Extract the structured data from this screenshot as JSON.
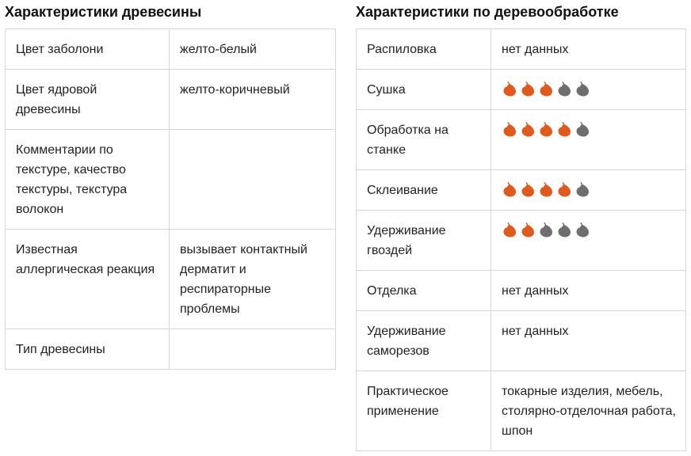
{
  "wood_characteristics": {
    "title": "Характеристики древесины",
    "rows": [
      {
        "label": "Цвет заболони",
        "value": "желто-белый"
      },
      {
        "label": "Цвет ядровой древесины",
        "value": "желто-коричневый"
      },
      {
        "label": "Комментарии по текстуре, качество текстуры, текстура волокон",
        "value": ""
      },
      {
        "label": "Известная аллергическая реакция",
        "value": "вызывает контактный дерматит и респираторные проблемы"
      },
      {
        "label": "Тип древесины",
        "value": ""
      }
    ]
  },
  "woodworking_characteristics": {
    "title": "Характеристики по деревообработке",
    "rating_colors": {
      "filled": "#e05a1e",
      "empty": "#6e6e6e"
    },
    "rating_icon": "leaf-icon",
    "rating_max": 5,
    "rows": [
      {
        "label": "Распиловка",
        "value": "нет данных"
      },
      {
        "label": "Сушка",
        "rating": 3
      },
      {
        "label": "Обработка на станке",
        "rating": 4
      },
      {
        "label": "Склеивание",
        "rating": 4
      },
      {
        "label": "Удерживание гвоздей",
        "rating": 2
      },
      {
        "label": "Отделка",
        "value": "нет данных"
      },
      {
        "label": "Удерживание саморезов",
        "value": "нет данных"
      },
      {
        "label": "Практическое применение",
        "value": "токарные изделия, мебель, столярно-отделочная работа, шпон"
      }
    ]
  }
}
